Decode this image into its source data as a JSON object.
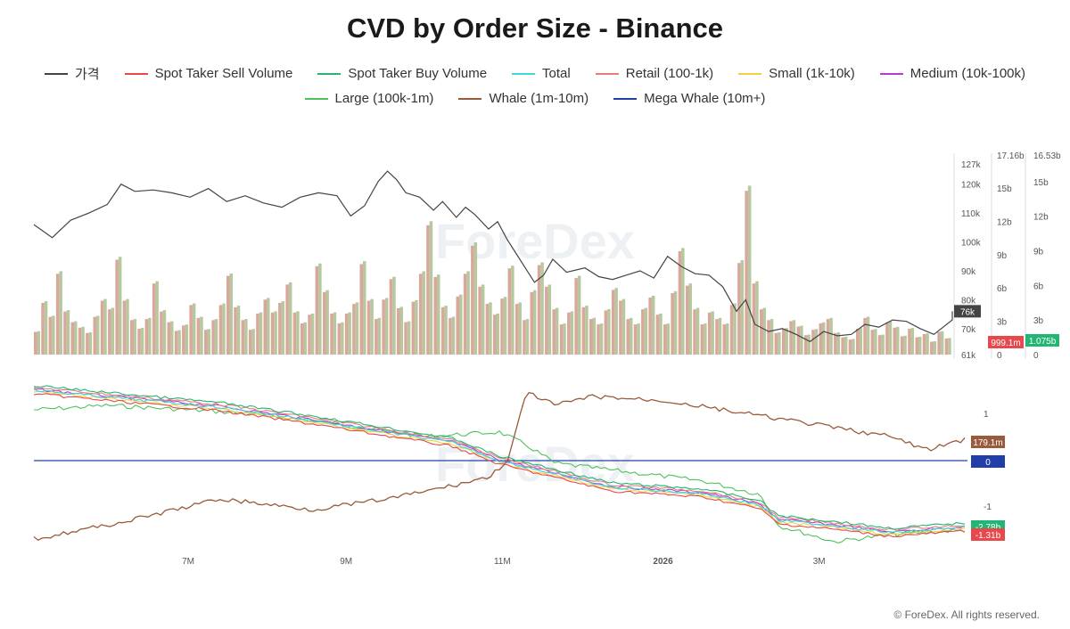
{
  "title": "CVD by Order Size - Binance",
  "legend": [
    {
      "label": "가격",
      "color": "#444444"
    },
    {
      "label": "Spot Taker Sell Volume",
      "color": "#e8484b"
    },
    {
      "label": "Spot Taker Buy Volume",
      "color": "#22b573"
    },
    {
      "label": "Total",
      "color": "#3fd7d7"
    },
    {
      "label": "Retail (100-1k)",
      "color": "#f07878"
    },
    {
      "label": "Small (1k-10k)",
      "color": "#f4d03f"
    },
    {
      "label": "Medium (10k-100k)",
      "color": "#b23fcf"
    },
    {
      "label": "Large (100k-1m)",
      "color": "#4fc25a"
    },
    {
      "label": "Whale (1m-10m)",
      "color": "#9a5a3c"
    },
    {
      "label": "Mega Whale (10m+)",
      "color": "#2440a8"
    }
  ],
  "watermark": "ForeDex",
  "footer": "© ForeDex. All rights reserved.",
  "chart_data": [
    {
      "type": "line",
      "panel": "top",
      "series_name": "가격",
      "axis": {
        "ticks": [
          "127k",
          "120k",
          "110k",
          "100k",
          "90k",
          "80k",
          "70k",
          "61k"
        ],
        "range": [
          61000,
          127000
        ]
      },
      "x_labels": [
        "7M",
        "9M",
        "11M",
        "2026",
        "3M"
      ],
      "price_points": [
        [
          0.0,
          106000
        ],
        [
          0.02,
          101500
        ],
        [
          0.04,
          107500
        ],
        [
          0.06,
          110000
        ],
        [
          0.08,
          113000
        ],
        [
          0.095,
          120000
        ],
        [
          0.11,
          117500
        ],
        [
          0.13,
          118000
        ],
        [
          0.15,
          117000
        ],
        [
          0.17,
          115500
        ],
        [
          0.19,
          118500
        ],
        [
          0.21,
          114000
        ],
        [
          0.23,
          116000
        ],
        [
          0.25,
          113500
        ],
        [
          0.27,
          112000
        ],
        [
          0.29,
          115500
        ],
        [
          0.31,
          117000
        ],
        [
          0.33,
          116000
        ],
        [
          0.345,
          109000
        ],
        [
          0.36,
          112500
        ],
        [
          0.375,
          121000
        ],
        [
          0.385,
          124500
        ],
        [
          0.395,
          121500
        ],
        [
          0.405,
          117000
        ],
        [
          0.42,
          115500
        ],
        [
          0.435,
          111000
        ],
        [
          0.445,
          114000
        ],
        [
          0.46,
          108500
        ],
        [
          0.47,
          112000
        ],
        [
          0.48,
          109500
        ],
        [
          0.495,
          104500
        ],
        [
          0.505,
          107000
        ],
        [
          0.515,
          101000
        ],
        [
          0.525,
          96000
        ],
        [
          0.535,
          91000
        ],
        [
          0.545,
          86000
        ],
        [
          0.555,
          88500
        ],
        [
          0.565,
          94000
        ],
        [
          0.58,
          89500
        ],
        [
          0.6,
          91000
        ],
        [
          0.615,
          88000
        ],
        [
          0.63,
          87000
        ],
        [
          0.645,
          88500
        ],
        [
          0.66,
          90000
        ],
        [
          0.675,
          87500
        ],
        [
          0.69,
          95000
        ],
        [
          0.705,
          91500
        ],
        [
          0.72,
          89000
        ],
        [
          0.735,
          88500
        ],
        [
          0.75,
          84500
        ],
        [
          0.765,
          76000
        ],
        [
          0.775,
          80000
        ],
        [
          0.785,
          71500
        ],
        [
          0.8,
          69000
        ],
        [
          0.815,
          70000
        ],
        [
          0.83,
          68000
        ],
        [
          0.845,
          65500
        ],
        [
          0.86,
          69000
        ],
        [
          0.875,
          67500
        ],
        [
          0.89,
          68000
        ],
        [
          0.905,
          71500
        ],
        [
          0.92,
          70500
        ],
        [
          0.935,
          73000
        ],
        [
          0.95,
          72500
        ],
        [
          0.965,
          70000
        ],
        [
          0.98,
          68000
        ],
        [
          1.0,
          73000
        ],
        [
          1.0,
          76000
        ]
      ],
      "price_label": "76k",
      "volume_axes": {
        "sell": {
          "ticks": [
            "17.16b",
            "15b",
            "12b",
            "9b",
            "6b",
            "3b",
            "0"
          ],
          "range": [
            0,
            17.16
          ],
          "current": "999.1m"
        },
        "buy": {
          "ticks": [
            "16.53b",
            "15b",
            "12b",
            "9b",
            "6b",
            "3b",
            "0"
          ],
          "range": [
            0,
            16.53
          ],
          "current": "1.075b"
        }
      },
      "volume_bars_b": [
        2.1,
        4.8,
        3.5,
        7.5,
        4.0,
        3.0,
        2.5,
        2.0,
        3.5,
        5.0,
        4.2,
        8.8,
        5.0,
        3.2,
        2.4,
        3.3,
        6.6,
        4.0,
        3.0,
        2.2,
        2.7,
        4.6,
        3.4,
        2.3,
        3.2,
        4.6,
        7.3,
        4.4,
        3.2,
        2.3,
        3.8,
        5.1,
        3.9,
        4.8,
        6.5,
        3.9,
        2.9,
        3.7,
        8.2,
        5.8,
        3.8,
        2.9,
        3.8,
        4.7,
        8.4,
        5.0,
        3.3,
        5.1,
        7.0,
        4.3,
        3.0,
        4.9,
        7.5,
        12.0,
        7.2,
        4.4,
        3.4,
        5.4,
        7.5,
        10.1,
        6.3,
        4.7,
        3.7,
        5.2,
        8.0,
        4.7,
        3.2,
        5.8,
        8.3,
        6.3,
        4.2,
        2.8,
        3.9,
        7.1,
        4.4,
        3.3,
        2.8,
        4.1,
        6.0,
        5.0,
        3.3,
        2.8,
        4.2,
        5.3,
        3.7,
        2.8,
        5.7,
        9.6,
        6.4,
        4.2,
        2.8,
        3.9,
        3.3,
        2.8,
        4.6,
        8.5,
        15.2,
        6.6,
        4.2,
        3.2,
        2.0,
        2.4,
        3.1,
        2.6,
        1.8,
        2.3,
        2.9,
        3.3,
        2.0,
        1.6,
        1.4,
        2.4,
        3.4,
        2.3,
        1.8,
        3.0,
        2.5,
        1.7,
        2.4,
        1.6,
        1.9,
        1.2,
        2.1,
        1.5
      ]
    },
    {
      "type": "line",
      "panel": "bottom",
      "axis": {
        "ticks": [
          "1",
          "-1"
        ]
      },
      "value_labels": [
        {
          "text": "179.1m",
          "series": "Whale (1m-10m)"
        },
        {
          "text": "0",
          "series": "Mega Whale (10m+)"
        },
        {
          "text": "-2.78b",
          "series": "Large (100k-1m)"
        },
        {
          "text": "-1.31b",
          "series": "Spot Taker Sell Volume"
        }
      ]
    }
  ]
}
